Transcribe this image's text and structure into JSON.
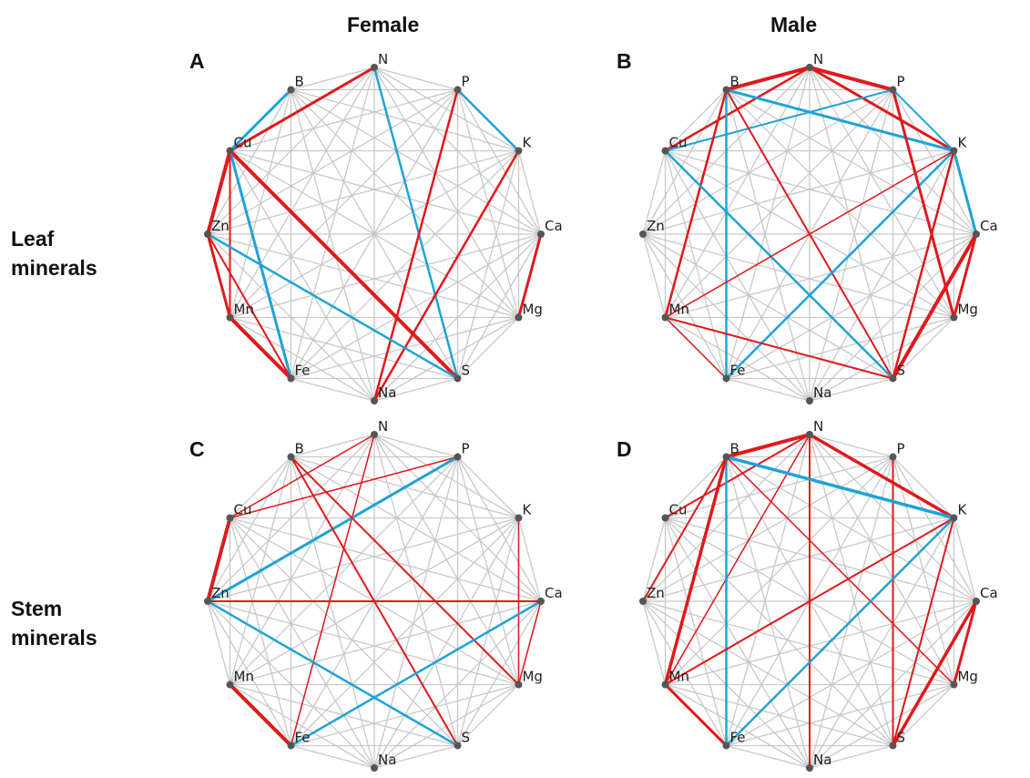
{
  "column_headers": [
    "Female",
    "Male"
  ],
  "row_labels": [
    [
      "Leaf",
      "minerals"
    ],
    [
      "Stem",
      "minerals"
    ]
  ],
  "minerals": [
    "N",
    "P",
    "K",
    "Ca",
    "Mg",
    "S",
    "Na",
    "Fe",
    "Mn",
    "Zn",
    "Cu",
    "B"
  ],
  "colors": {
    "positive": "#e0191c",
    "negative": "#1ea3d6",
    "background_edge": "#c8c8c8",
    "node": "#555555"
  },
  "panels": [
    {
      "letter": "A",
      "edges": [
        [
          "N",
          "Cu",
          "red",
          3
        ],
        [
          "N",
          "S",
          "blue",
          2.5
        ],
        [
          "B",
          "Cu",
          "blue",
          3
        ],
        [
          "P",
          "Na",
          "red",
          2.5
        ],
        [
          "K",
          "Na",
          "red",
          2.5
        ],
        [
          "K",
          "P",
          "blue",
          2.5
        ],
        [
          "Cu",
          "S",
          "red",
          4
        ],
        [
          "Cu",
          "Fe",
          "blue",
          3
        ],
        [
          "Cu",
          "Zn",
          "red",
          4
        ],
        [
          "Cu",
          "Mn",
          "red",
          2
        ],
        [
          "Zn",
          "S",
          "blue",
          2.5
        ],
        [
          "Zn",
          "Mn",
          "red",
          3
        ],
        [
          "Zn",
          "Fe",
          "red",
          2
        ],
        [
          "Mn",
          "Fe",
          "red",
          4
        ],
        [
          "Ca",
          "Mg",
          "red",
          3
        ]
      ]
    },
    {
      "letter": "B",
      "edges": [
        [
          "N",
          "B",
          "red",
          4
        ],
        [
          "N",
          "Cu",
          "red",
          2.5
        ],
        [
          "N",
          "P",
          "red",
          4
        ],
        [
          "N",
          "K",
          "red",
          3
        ],
        [
          "P",
          "K",
          "blue",
          2
        ],
        [
          "P",
          "Cu",
          "blue",
          2
        ],
        [
          "B",
          "K",
          "blue",
          3
        ],
        [
          "B",
          "Fe",
          "blue",
          2.5
        ],
        [
          "B",
          "S",
          "red",
          2
        ],
        [
          "B",
          "Mn",
          "red",
          2.5
        ],
        [
          "Cu",
          "S",
          "blue",
          2.5
        ],
        [
          "K",
          "Fe",
          "blue",
          2.5
        ],
        [
          "K",
          "Mn",
          "red",
          1.5
        ],
        [
          "K",
          "Ca",
          "blue",
          3
        ],
        [
          "K",
          "S",
          "red",
          2.5
        ],
        [
          "P",
          "Mg",
          "red",
          3
        ],
        [
          "Ca",
          "Mg",
          "red",
          3
        ],
        [
          "Ca",
          "S",
          "red",
          4
        ],
        [
          "Mn",
          "S",
          "red",
          2
        ],
        [
          "Mn",
          "Fe",
          "red",
          1.5
        ]
      ]
    },
    {
      "letter": "C",
      "edges": [
        [
          "N",
          "Fe",
          "red",
          1.5
        ],
        [
          "N",
          "Cu",
          "red",
          1.5
        ],
        [
          "P",
          "Cu",
          "red",
          1.5
        ],
        [
          "P",
          "Zn",
          "blue",
          3
        ],
        [
          "B",
          "Mg",
          "red",
          2
        ],
        [
          "B",
          "S",
          "red",
          2
        ],
        [
          "Cu",
          "Zn",
          "red",
          4
        ],
        [
          "Zn",
          "Ca",
          "red",
          2
        ],
        [
          "Zn",
          "S",
          "blue",
          2.5
        ],
        [
          "K",
          "Mg",
          "red",
          1.5
        ],
        [
          "Ca",
          "Fe",
          "blue",
          2.5
        ],
        [
          "Ca",
          "Mg",
          "red",
          1.5
        ],
        [
          "Mn",
          "Fe",
          "red",
          4
        ]
      ]
    },
    {
      "letter": "D",
      "edges": [
        [
          "N",
          "B",
          "red",
          4
        ],
        [
          "N",
          "K",
          "red",
          3.5
        ],
        [
          "N",
          "Cu",
          "red",
          2
        ],
        [
          "N",
          "Na",
          "red",
          2
        ],
        [
          "N",
          "Mn",
          "red",
          1.5
        ],
        [
          "P",
          "S",
          "red",
          2
        ],
        [
          "B",
          "K",
          "blue",
          3.5
        ],
        [
          "B",
          "Fe",
          "blue",
          2.5
        ],
        [
          "B",
          "Mn",
          "red",
          3.5
        ],
        [
          "B",
          "Zn",
          "red",
          2
        ],
        [
          "B",
          "Mg",
          "red",
          1.5
        ],
        [
          "K",
          "Mn",
          "red",
          2
        ],
        [
          "K",
          "Fe",
          "blue",
          2.5
        ],
        [
          "K",
          "S",
          "red",
          2
        ],
        [
          "Ca",
          "Mg",
          "red",
          3
        ],
        [
          "Ca",
          "S",
          "red",
          3.5
        ],
        [
          "Mn",
          "Fe",
          "red",
          3
        ]
      ]
    }
  ]
}
